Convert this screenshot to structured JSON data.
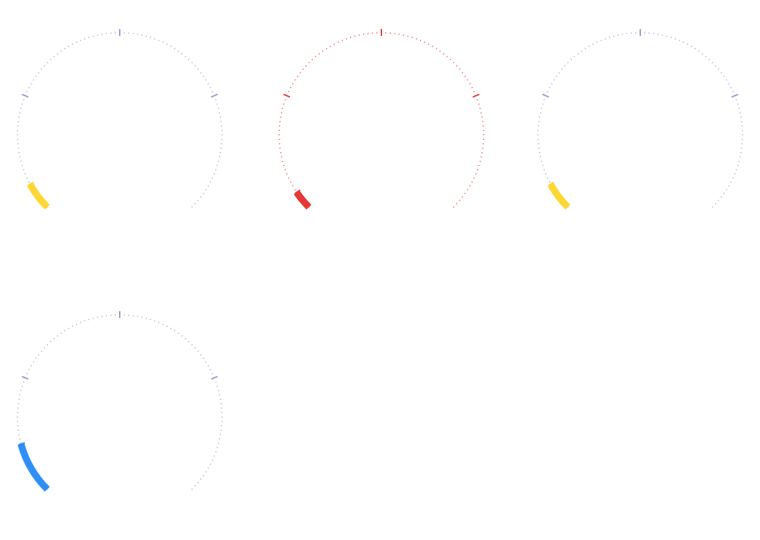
{
  "chart_data": [
    {
      "type": "gauge",
      "min": 0,
      "max": 100,
      "value": 6,
      "color": "#FDD835",
      "tick_color": "#9E9ACF",
      "value_tick_color": "#222222",
      "major_ticks": [
        0,
        25,
        50,
        75,
        100
      ]
    },
    {
      "type": "gauge",
      "min": 0,
      "max": 100,
      "value": 4,
      "color": "#E53935",
      "tick_color": "#E53935",
      "value_tick_color": "#E53935",
      "major_ticks": [
        0,
        25,
        50,
        75,
        100
      ]
    },
    {
      "type": "gauge",
      "min": 0,
      "max": 100,
      "value": 6,
      "color": "#FDD835",
      "tick_color": "#9E9ACF",
      "value_tick_color": "#222222",
      "major_ticks": [
        0,
        25,
        50,
        75,
        100
      ]
    },
    {
      "type": "gauge",
      "min": 0,
      "max": 100,
      "value": 11,
      "color": "#2F8FF7",
      "tick_color": "#9E9ACF",
      "value_tick_color": "#222222",
      "major_ticks": [
        0,
        25,
        50,
        75,
        100
      ]
    }
  ]
}
